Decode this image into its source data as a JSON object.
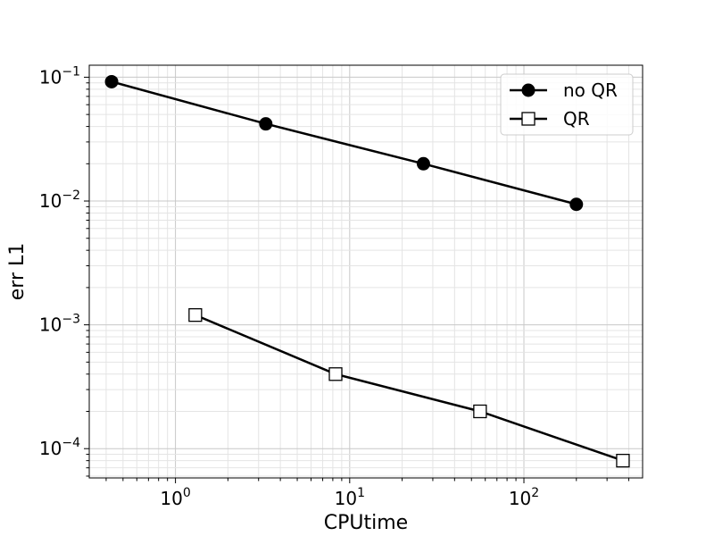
{
  "chart_data": {
    "type": "line",
    "title": "",
    "xlabel": "CPUtime",
    "ylabel": "err L1",
    "xscale": "log",
    "yscale": "log",
    "xlim": [
      0.32,
      480
    ],
    "ylim": [
      5.8e-05,
      0.125
    ],
    "grid": true,
    "legend_position": "top-right",
    "x_ticks": [
      {
        "base": "10",
        "exp": "0",
        "value": 1
      },
      {
        "base": "10",
        "exp": "1",
        "value": 10
      },
      {
        "base": "10",
        "exp": "2",
        "value": 100
      }
    ],
    "y_ticks": [
      {
        "base": "10",
        "exp": "−1",
        "value": 0.1
      },
      {
        "base": "10",
        "exp": "−2",
        "value": 0.01
      },
      {
        "base": "10",
        "exp": "−3",
        "value": 0.001
      },
      {
        "base": "10",
        "exp": "−4",
        "value": 0.0001
      }
    ],
    "series": [
      {
        "name": "no QR",
        "marker": "circle",
        "color": "#000000",
        "x": [
          0.43,
          3.3,
          26.5,
          200
        ],
        "y": [
          0.092,
          0.042,
          0.02,
          0.0094
        ]
      },
      {
        "name": "QR",
        "marker": "square",
        "color": "#000000",
        "x": [
          1.3,
          8.3,
          56,
          370
        ],
        "y": [
          0.0012,
          0.0004,
          0.0002,
          8e-05
        ]
      }
    ]
  }
}
